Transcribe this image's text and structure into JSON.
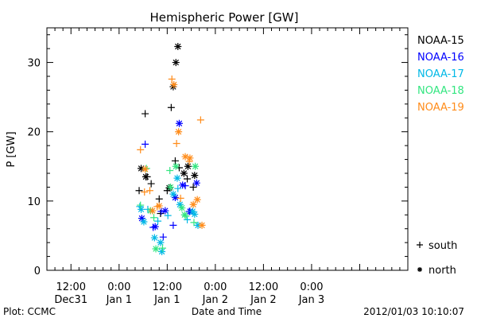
{
  "chart_data": {
    "type": "scatter",
    "title": "Hemispheric Power [GW]",
    "ylabel": "P [GW]",
    "xlabel": "Date and Time",
    "ylim": [
      0,
      35
    ],
    "yticks": [
      0,
      10,
      20,
      30
    ],
    "xlim": [
      "2011-12-31T06:00",
      "2012-01-04T00:00"
    ],
    "xticks": [
      {
        "t": "2011-12-31T12:00",
        "line1": "12:00",
        "line2": "Dec31"
      },
      {
        "t": "2012-01-01T00:00",
        "line1": "0:00",
        "line2": "Jan 1"
      },
      {
        "t": "2012-01-01T12:00",
        "line1": "12:00",
        "line2": "Jan 1"
      },
      {
        "t": "2012-01-02T00:00",
        "line1": "0:00",
        "line2": "Jan 2"
      },
      {
        "t": "2012-01-02T12:00",
        "line1": "12:00",
        "line2": "Jan 2"
      },
      {
        "t": "2012-01-03T00:00",
        "line1": "0:00",
        "line2": "Jan 3"
      }
    ],
    "marker_legend": [
      {
        "symbol": "+",
        "label": "south"
      },
      {
        "symbol": "*",
        "label": "north"
      }
    ],
    "series": [
      {
        "name": "NOAA-15",
        "color": "#000000",
        "points": [
          {
            "x": "2012-01-01T05:00",
            "y": 11.5,
            "m": "+"
          },
          {
            "x": "2012-01-01T06:30",
            "y": 22.6,
            "m": "+"
          },
          {
            "x": "2012-01-01T07:00",
            "y": 13.5,
            "m": "+"
          },
          {
            "x": "2012-01-01T08:00",
            "y": 12.5,
            "m": "+"
          },
          {
            "x": "2012-01-01T10:00",
            "y": 10.3,
            "m": "+"
          },
          {
            "x": "2012-01-01T10:20",
            "y": 8.2,
            "m": "+"
          },
          {
            "x": "2012-01-01T12:00",
            "y": 11.5,
            "m": "+"
          },
          {
            "x": "2012-01-01T13:00",
            "y": 23.5,
            "m": "+"
          },
          {
            "x": "2012-01-01T14:00",
            "y": 15.8,
            "m": "+"
          },
          {
            "x": "2012-01-01T15:00",
            "y": 14.8,
            "m": "+"
          },
          {
            "x": "2012-01-01T17:00",
            "y": 13.2,
            "m": "+"
          },
          {
            "x": "2012-01-01T18:30",
            "y": 12.0,
            "m": "+"
          },
          {
            "x": "2012-01-01T05:30",
            "y": 14.7,
            "m": "*"
          },
          {
            "x": "2012-01-01T06:40",
            "y": 13.5,
            "m": "*"
          },
          {
            "x": "2012-01-01T12:30",
            "y": 11.9,
            "m": "*"
          },
          {
            "x": "2012-01-01T13:30",
            "y": 26.5,
            "m": "*"
          },
          {
            "x": "2012-01-01T14:10",
            "y": 30.0,
            "m": "*"
          },
          {
            "x": "2012-01-01T14:40",
            "y": 32.3,
            "m": "*"
          },
          {
            "x": "2012-01-01T16:10",
            "y": 14.0,
            "m": "*"
          },
          {
            "x": "2012-01-01T17:10",
            "y": 15.0,
            "m": "*"
          },
          {
            "x": "2012-01-01T18:50",
            "y": 13.7,
            "m": "*"
          }
        ]
      },
      {
        "name": "NOAA-16",
        "color": "#0000ff",
        "points": [
          {
            "x": "2012-01-01T06:30",
            "y": 18.2,
            "m": "+"
          },
          {
            "x": "2012-01-01T08:30",
            "y": 6.2,
            "m": "+"
          },
          {
            "x": "2012-01-01T10:30",
            "y": 8.5,
            "m": "+"
          },
          {
            "x": "2012-01-01T11:00",
            "y": 4.8,
            "m": "+"
          },
          {
            "x": "2012-01-01T13:30",
            "y": 6.5,
            "m": "+"
          },
          {
            "x": "2012-01-01T16:30",
            "y": 12.2,
            "m": "+"
          },
          {
            "x": "2012-01-01T17:30",
            "y": 8.5,
            "m": "+"
          },
          {
            "x": "2012-01-01T05:40",
            "y": 7.5,
            "m": "*"
          },
          {
            "x": "2012-01-01T09:00",
            "y": 6.3,
            "m": "*"
          },
          {
            "x": "2012-01-01T11:30",
            "y": 8.6,
            "m": "*"
          },
          {
            "x": "2012-01-01T14:00",
            "y": 10.5,
            "m": "*"
          },
          {
            "x": "2012-01-01T15:00",
            "y": 21.2,
            "m": "*"
          },
          {
            "x": "2012-01-01T15:50",
            "y": 12.3,
            "m": "*"
          },
          {
            "x": "2012-01-01T17:40",
            "y": 8.5,
            "m": "*"
          },
          {
            "x": "2012-01-01T19:20",
            "y": 12.6,
            "m": "*"
          }
        ]
      },
      {
        "name": "NOAA-17",
        "color": "#00b8e6",
        "points": [
          {
            "x": "2012-01-01T05:10",
            "y": 9.2,
            "m": "+"
          },
          {
            "x": "2012-01-01T07:10",
            "y": 8.8,
            "m": "+"
          },
          {
            "x": "2012-01-01T09:40",
            "y": 7.1,
            "m": "+"
          },
          {
            "x": "2012-01-01T12:10",
            "y": 7.9,
            "m": "+"
          },
          {
            "x": "2012-01-01T14:40",
            "y": 11.8,
            "m": "+"
          },
          {
            "x": "2012-01-01T17:00",
            "y": 7.3,
            "m": "+"
          },
          {
            "x": "2012-01-01T05:30",
            "y": 8.8,
            "m": "*"
          },
          {
            "x": "2012-01-01T06:10",
            "y": 7.0,
            "m": "*"
          },
          {
            "x": "2012-01-01T08:50",
            "y": 4.7,
            "m": "*"
          },
          {
            "x": "2012-01-01T10:20",
            "y": 4.0,
            "m": "*"
          },
          {
            "x": "2012-01-01T10:40",
            "y": 2.7,
            "m": "*"
          },
          {
            "x": "2012-01-01T13:30",
            "y": 11.0,
            "m": "*"
          },
          {
            "x": "2012-01-01T14:30",
            "y": 13.3,
            "m": "*"
          },
          {
            "x": "2012-01-01T15:10",
            "y": 9.5,
            "m": "*"
          },
          {
            "x": "2012-01-01T18:20",
            "y": 8.5,
            "m": "*"
          },
          {
            "x": "2012-01-01T18:50",
            "y": 8.1,
            "m": "*"
          },
          {
            "x": "2012-01-01T19:40",
            "y": 6.5,
            "m": "*"
          }
        ]
      },
      {
        "name": "NOAA-18",
        "color": "#33e680",
        "points": [
          {
            "x": "2012-01-01T05:20",
            "y": 9.4,
            "m": "+"
          },
          {
            "x": "2012-01-01T06:50",
            "y": 14.7,
            "m": "+"
          },
          {
            "x": "2012-01-01T08:40",
            "y": 7.6,
            "m": "+"
          },
          {
            "x": "2012-01-01T10:50",
            "y": 3.2,
            "m": "+"
          },
          {
            "x": "2012-01-01T12:40",
            "y": 14.4,
            "m": "+"
          },
          {
            "x": "2012-01-01T16:40",
            "y": 7.8,
            "m": "+"
          },
          {
            "x": "2012-01-01T18:40",
            "y": 6.9,
            "m": "+"
          },
          {
            "x": "2012-01-01T07:50",
            "y": 8.6,
            "m": "*"
          },
          {
            "x": "2012-01-01T09:10",
            "y": 3.1,
            "m": "*"
          },
          {
            "x": "2012-01-01T12:50",
            "y": 12.0,
            "m": "*"
          },
          {
            "x": "2012-01-01T14:10",
            "y": 15.0,
            "m": "*"
          },
          {
            "x": "2012-01-01T15:40",
            "y": 9.0,
            "m": "*"
          },
          {
            "x": "2012-01-01T16:20",
            "y": 8.0,
            "m": "*"
          },
          {
            "x": "2012-01-01T19:00",
            "y": 15.0,
            "m": "*"
          }
        ]
      },
      {
        "name": "NOAA-19",
        "color": "#ff8c1a",
        "points": [
          {
            "x": "2012-01-01T05:20",
            "y": 17.4,
            "m": "+"
          },
          {
            "x": "2012-01-01T06:20",
            "y": 11.3,
            "m": "+"
          },
          {
            "x": "2012-01-01T07:40",
            "y": 11.5,
            "m": "+"
          },
          {
            "x": "2012-01-01T09:30",
            "y": 9.2,
            "m": "+"
          },
          {
            "x": "2012-01-01T13:10",
            "y": 27.6,
            "m": "+"
          },
          {
            "x": "2012-01-01T14:20",
            "y": 18.3,
            "m": "+"
          },
          {
            "x": "2012-01-01T15:20",
            "y": 10.4,
            "m": "+"
          },
          {
            "x": "2012-01-01T17:30",
            "y": 15.7,
            "m": "+"
          },
          {
            "x": "2012-01-01T20:20",
            "y": 21.7,
            "m": "+"
          },
          {
            "x": "2012-01-01T06:30",
            "y": 14.6,
            "m": "*"
          },
          {
            "x": "2012-01-01T08:20",
            "y": 8.6,
            "m": "*"
          },
          {
            "x": "2012-01-01T10:00",
            "y": 9.3,
            "m": "*"
          },
          {
            "x": "2012-01-01T13:40",
            "y": 26.8,
            "m": "*"
          },
          {
            "x": "2012-01-01T14:50",
            "y": 20.0,
            "m": "*"
          },
          {
            "x": "2012-01-01T16:30",
            "y": 16.4,
            "m": "*"
          },
          {
            "x": "2012-01-01T17:40",
            "y": 16.2,
            "m": "*"
          },
          {
            "x": "2012-01-01T18:30",
            "y": 9.5,
            "m": "*"
          },
          {
            "x": "2012-01-01T19:30",
            "y": 10.2,
            "m": "*"
          },
          {
            "x": "2012-01-01T20:40",
            "y": 6.5,
            "m": "*"
          }
        ]
      }
    ]
  },
  "footer": {
    "left": "Plot: CCMC",
    "right": "2012/01/03 10:10:07"
  }
}
